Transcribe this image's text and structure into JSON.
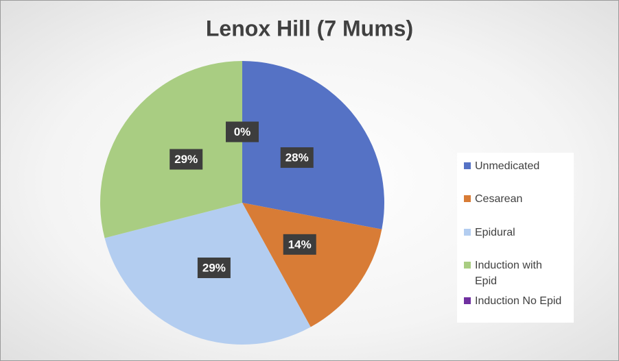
{
  "chart_data": {
    "type": "pie",
    "title": "Lenox Hill (7 Mums)",
    "categories": [
      "Unmedicated",
      "Cesarean",
      "Epidural",
      "Induction with Epid",
      "Induction No Epid"
    ],
    "values": [
      28,
      14,
      29,
      29,
      0
    ],
    "value_labels": [
      "28%",
      "14%",
      "29%",
      "29%",
      "0%"
    ],
    "colors": [
      "#5572c5",
      "#d87c36",
      "#b3cdf0",
      "#a9cd82",
      "#7030a0"
    ],
    "legend": "right"
  }
}
